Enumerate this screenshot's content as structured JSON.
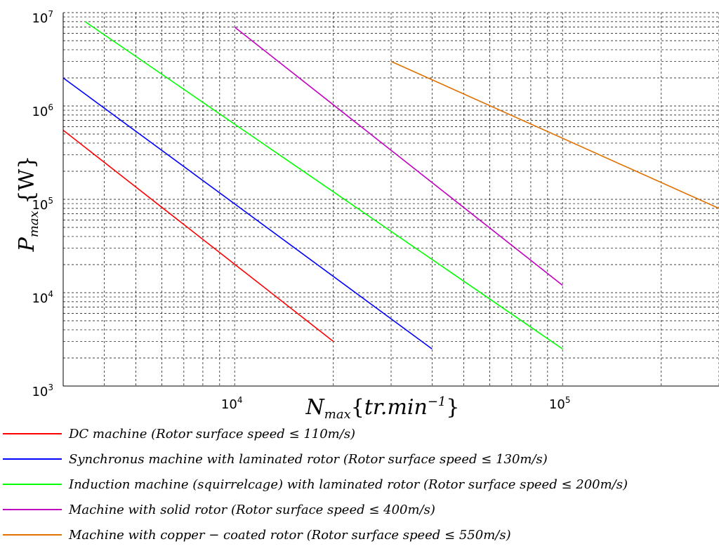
{
  "chart_data": {
    "type": "line",
    "xscale": "log",
    "yscale": "log",
    "xlim": [
      3000,
      300000
    ],
    "ylim": [
      1000,
      10000000
    ],
    "grid": true,
    "xlabel": "N_max{tr.min^-1}",
    "ylabel": "P_max {W}",
    "x_ticks": [
      {
        "base": "10",
        "exp": "4",
        "value": 10000
      },
      {
        "base": "10",
        "exp": "5",
        "value": 100000
      }
    ],
    "y_ticks": [
      {
        "base": "10",
        "exp": "3",
        "value": 1000
      },
      {
        "base": "10",
        "exp": "4",
        "value": 10000
      },
      {
        "base": "10",
        "exp": "5",
        "value": 100000
      },
      {
        "base": "10",
        "exp": "6",
        "value": 1000000
      },
      {
        "base": "10",
        "exp": "7",
        "value": 10000000
      }
    ],
    "legend_position": "bottom",
    "series": [
      {
        "name": "DC machine (Rotor surface speed ≤ 110m/s)",
        "color": "#ff0000",
        "x": [
          3000,
          20000
        ],
        "y": [
          550000,
          3000
        ]
      },
      {
        "name": "Synchronus machine with laminated rotor (Rotor surface speed ≤ 130m/s)",
        "color": "#0000ff",
        "x": [
          3000,
          40000
        ],
        "y": [
          2000000,
          2500
        ]
      },
      {
        "name": "Induction machine (squirrelcage) with laminated rotor (Rotor surface speed ≤ 200m/s)",
        "color": "#00ff00",
        "x": [
          3500,
          100000
        ],
        "y": [
          8000000,
          2500
        ]
      },
      {
        "name": "Machine with solid rotor (Rotor surface speed ≤ 400m/s)",
        "color": "#c000c0",
        "x": [
          10000,
          100000
        ],
        "y": [
          7000000,
          12000
        ]
      },
      {
        "name": "Machine with copper − coated rotor (Rotor surface speed ≤ 550m/s)",
        "color": "#e07000",
        "x": [
          30000,
          300000
        ],
        "y": [
          3000000,
          80000
        ]
      }
    ]
  }
}
